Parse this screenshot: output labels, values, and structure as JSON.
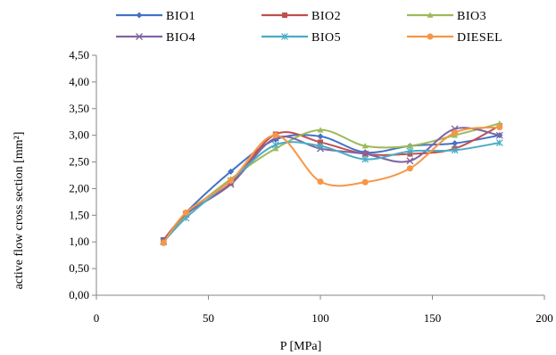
{
  "chart_data": {
    "type": "line",
    "xlabel": "P [MPa]",
    "ylabel": "active flow cross section [mm²]",
    "xlim": [
      0,
      200
    ],
    "ylim": [
      0,
      4.5
    ],
    "x_ticks": [
      "0",
      "50",
      "100",
      "150",
      "200"
    ],
    "y_ticks": [
      "0,00",
      "0,50",
      "1,00",
      "1,50",
      "2,00",
      "2,50",
      "3,00",
      "3,50",
      "4,00",
      "4,50"
    ],
    "grid": false,
    "legend_position": "top",
    "x": [
      30,
      40,
      60,
      80,
      100,
      120,
      140,
      160,
      180
    ],
    "series": [
      {
        "name": "BIO1",
        "color": "#4472c4",
        "marker": "diamond",
        "values": [
          1.02,
          1.55,
          2.32,
          2.92,
          2.98,
          2.68,
          2.8,
          2.85,
          3.0
        ]
      },
      {
        "name": "BIO2",
        "color": "#c0504d",
        "marker": "square",
        "values": [
          1.04,
          1.52,
          2.1,
          3.02,
          2.87,
          2.65,
          2.65,
          2.75,
          3.18
        ]
      },
      {
        "name": "BIO3",
        "color": "#9bbb59",
        "marker": "triangle",
        "values": [
          1.0,
          1.5,
          2.18,
          2.75,
          3.1,
          2.8,
          2.8,
          3.0,
          3.22
        ]
      },
      {
        "name": "BIO4",
        "color": "#8064a2",
        "marker": "x",
        "values": [
          1.02,
          1.52,
          2.08,
          2.95,
          2.75,
          2.65,
          2.52,
          3.12,
          3.0
        ]
      },
      {
        "name": "BIO5",
        "color": "#4bacc6",
        "marker": "star",
        "values": [
          1.0,
          1.45,
          2.15,
          2.82,
          2.8,
          2.55,
          2.7,
          2.72,
          2.86
        ]
      },
      {
        "name": "DIESEL",
        "color": "#f79646",
        "marker": "circle",
        "values": [
          0.98,
          1.55,
          2.15,
          3.0,
          2.13,
          2.12,
          2.38,
          3.05,
          3.15
        ]
      }
    ]
  }
}
